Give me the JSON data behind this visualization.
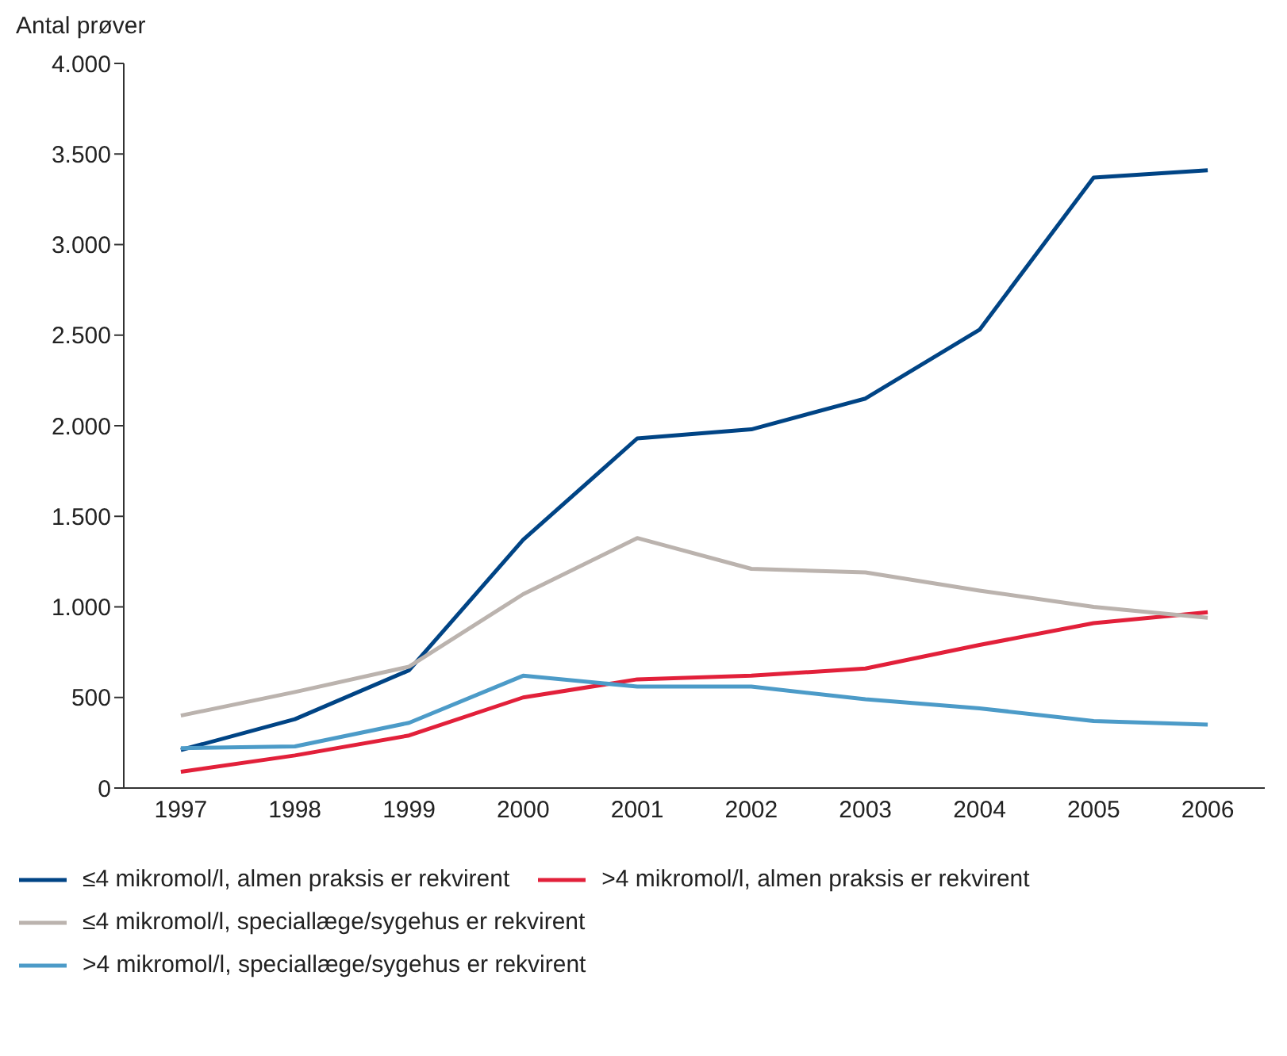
{
  "chart_data": {
    "type": "line",
    "ylabel": "Antal prøver",
    "categories": [
      "1997",
      "1998",
      "1999",
      "2000",
      "2001",
      "2002",
      "2003",
      "2004",
      "2005",
      "2006"
    ],
    "series": [
      {
        "name": "≤4 mikromol/l, almen praksis er rekvirent",
        "color": "#004485",
        "values": [
          210,
          380,
          650,
          1370,
          1930,
          1980,
          2150,
          2530,
          3370,
          3410
        ]
      },
      {
        "name": ">4 mikromol/l, almen praksis er rekvirent",
        "color": "#e2203a",
        "values": [
          90,
          180,
          290,
          500,
          600,
          620,
          660,
          790,
          910,
          970
        ]
      },
      {
        "name": "≤4 mikromol/l, speciallæge/sygehus er rekvirent",
        "color": "#bbb3ae",
        "values": [
          400,
          530,
          670,
          1070,
          1380,
          1210,
          1190,
          1090,
          1000,
          940
        ]
      },
      {
        "name": ">4 mikromol/l, speciallæge/sygehus er rekvirent",
        "color": "#4c9bc8",
        "values": [
          220,
          230,
          360,
          620,
          560,
          560,
          490,
          440,
          370,
          350
        ]
      }
    ],
    "ylim": [
      0,
      4000
    ],
    "yticks": [
      {
        "value": 0,
        "label": "0"
      },
      {
        "value": 500,
        "label": "500"
      },
      {
        "value": 1000,
        "label": "1.000"
      },
      {
        "value": 1500,
        "label": "1.500"
      },
      {
        "value": 2000,
        "label": "2.000"
      },
      {
        "value": 2500,
        "label": "2.500"
      },
      {
        "value": 3000,
        "label": "3.000"
      },
      {
        "value": 3500,
        "label": "3.500"
      },
      {
        "value": 4000,
        "label": "4.000"
      }
    ],
    "grid": false,
    "legend": "bottom",
    "marker": "none",
    "line_style": "solid"
  }
}
